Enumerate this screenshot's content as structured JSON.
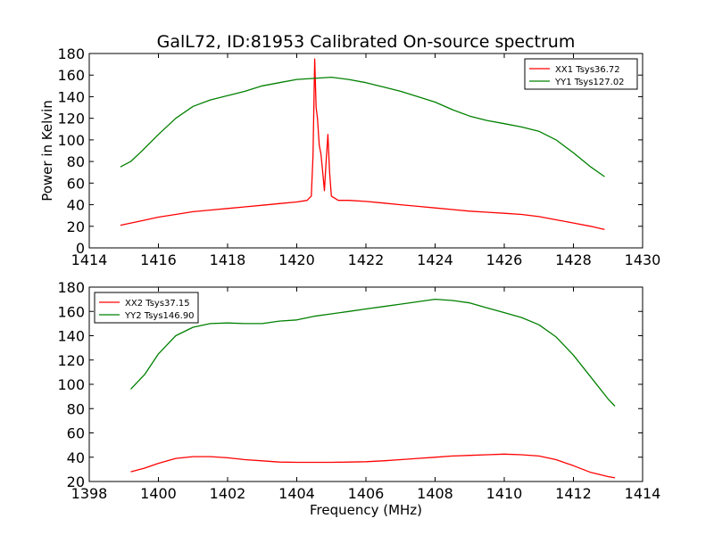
{
  "figure": {
    "title": "GalL72, ID:81953 Calibrated On-source spectrum",
    "ylabel": "Power in Kelvin",
    "xlabel": "Frequency (MHz)"
  },
  "chart_data": [
    {
      "type": "line",
      "title": "GalL72, ID:81953 Calibrated On-source spectrum",
      "xlabel": "",
      "ylabel": "Power in Kelvin",
      "xlim": [
        1414,
        1430
      ],
      "ylim": [
        0,
        180
      ],
      "xticks": [
        "1414",
        "1416",
        "1418",
        "1420",
        "1422",
        "1424",
        "1426",
        "1428",
        "1430"
      ],
      "yticks": [
        "0",
        "20",
        "40",
        "60",
        "80",
        "100",
        "120",
        "140",
        "160",
        "180"
      ],
      "legend": {
        "placement": "top-right"
      },
      "grid": false,
      "series": [
        {
          "name": "XX1 Tsys36.72",
          "color": "#ff0000",
          "points": [
            [
              1414.9,
              21
            ],
            [
              1415.5,
              25
            ],
            [
              1416.0,
              28.5
            ],
            [
              1416.5,
              31
            ],
            [
              1417.0,
              33.5
            ],
            [
              1417.5,
              35
            ],
            [
              1418.0,
              36.5
            ],
            [
              1418.5,
              38
            ],
            [
              1419.0,
              39.5
            ],
            [
              1419.5,
              41
            ],
            [
              1420.0,
              42.5
            ],
            [
              1420.3,
              44
            ],
            [
              1420.42,
              48
            ],
            [
              1420.47,
              85
            ],
            [
              1420.52,
              175
            ],
            [
              1420.56,
              130
            ],
            [
              1420.6,
              120
            ],
            [
              1420.65,
              95
            ],
            [
              1420.7,
              87
            ],
            [
              1420.75,
              70
            ],
            [
              1420.8,
              53
            ],
            [
              1420.85,
              80
            ],
            [
              1420.9,
              105
            ],
            [
              1420.95,
              70
            ],
            [
              1421.0,
              48
            ],
            [
              1421.2,
              44
            ],
            [
              1421.5,
              44
            ],
            [
              1422.0,
              43
            ],
            [
              1422.5,
              41.5
            ],
            [
              1423.0,
              40
            ],
            [
              1423.5,
              38.5
            ],
            [
              1424.0,
              37
            ],
            [
              1424.5,
              35.5
            ],
            [
              1425.0,
              34
            ],
            [
              1425.5,
              33
            ],
            [
              1426.0,
              32
            ],
            [
              1426.5,
              31
            ],
            [
              1427.0,
              29
            ],
            [
              1427.5,
              26
            ],
            [
              1428.0,
              23
            ],
            [
              1428.5,
              20
            ],
            [
              1428.9,
              17
            ]
          ]
        },
        {
          "name": "YY1 Tsys127.02",
          "color": "#008000",
          "points": [
            [
              1414.9,
              75
            ],
            [
              1415.2,
              80
            ],
            [
              1415.5,
              89
            ],
            [
              1416.0,
              105
            ],
            [
              1416.5,
              120
            ],
            [
              1417.0,
              131
            ],
            [
              1417.5,
              137
            ],
            [
              1418.0,
              141
            ],
            [
              1418.5,
              145
            ],
            [
              1419.0,
              150
            ],
            [
              1419.5,
              153
            ],
            [
              1420.0,
              156
            ],
            [
              1420.5,
              157
            ],
            [
              1421.0,
              158
            ],
            [
              1421.5,
              156
            ],
            [
              1422.0,
              153
            ],
            [
              1422.5,
              149
            ],
            [
              1423.0,
              145
            ],
            [
              1423.5,
              140
            ],
            [
              1424.0,
              135
            ],
            [
              1424.5,
              128
            ],
            [
              1425.0,
              122
            ],
            [
              1425.5,
              118
            ],
            [
              1426.0,
              115
            ],
            [
              1426.5,
              112
            ],
            [
              1427.0,
              108
            ],
            [
              1427.5,
              100
            ],
            [
              1428.0,
              88
            ],
            [
              1428.5,
              75
            ],
            [
              1428.9,
              66
            ]
          ]
        }
      ]
    },
    {
      "type": "line",
      "title": "",
      "xlabel": "Frequency (MHz)",
      "ylabel": "",
      "xlim": [
        1398,
        1414
      ],
      "ylim": [
        20,
        180
      ],
      "xticks": [
        "1398",
        "1400",
        "1402",
        "1404",
        "1406",
        "1408",
        "1410",
        "1412",
        "1414"
      ],
      "yticks": [
        "20",
        "40",
        "60",
        "80",
        "100",
        "120",
        "140",
        "160",
        "180"
      ],
      "legend": {
        "placement": "top-left"
      },
      "grid": false,
      "series": [
        {
          "name": "XX2 Tsys37.15",
          "color": "#ff0000",
          "points": [
            [
              1399.2,
              28
            ],
            [
              1399.6,
              31
            ],
            [
              1400.0,
              35
            ],
            [
              1400.5,
              39
            ],
            [
              1401.0,
              40.5
            ],
            [
              1401.5,
              40.5
            ],
            [
              1402.0,
              39.5
            ],
            [
              1402.5,
              38
            ],
            [
              1403.0,
              37
            ],
            [
              1403.5,
              36
            ],
            [
              1404.0,
              35.8
            ],
            [
              1404.5,
              35.8
            ],
            [
              1405.0,
              35.8
            ],
            [
              1405.5,
              36
            ],
            [
              1406.0,
              36.3
            ],
            [
              1406.5,
              37
            ],
            [
              1407.0,
              38
            ],
            [
              1407.5,
              39
            ],
            [
              1408.0,
              40
            ],
            [
              1408.5,
              41
            ],
            [
              1409.0,
              41.5
            ],
            [
              1409.5,
              42
            ],
            [
              1410.0,
              42.5
            ],
            [
              1410.5,
              42
            ],
            [
              1411.0,
              41
            ],
            [
              1411.5,
              38
            ],
            [
              1412.0,
              33
            ],
            [
              1412.5,
              27.5
            ],
            [
              1413.0,
              24
            ],
            [
              1413.2,
              23
            ]
          ]
        },
        {
          "name": "YY2 Tsys146.90",
          "color": "#008000",
          "points": [
            [
              1399.2,
              96
            ],
            [
              1399.6,
              108
            ],
            [
              1400.0,
              125
            ],
            [
              1400.5,
              140
            ],
            [
              1401.0,
              147
            ],
            [
              1401.5,
              150
            ],
            [
              1402.0,
              150.5
            ],
            [
              1402.5,
              150
            ],
            [
              1403.0,
              150
            ],
            [
              1403.5,
              152
            ],
            [
              1404.0,
              153
            ],
            [
              1404.5,
              156
            ],
            [
              1405.0,
              158
            ],
            [
              1405.5,
              160
            ],
            [
              1406.0,
              162
            ],
            [
              1406.5,
              164
            ],
            [
              1407.0,
              166
            ],
            [
              1407.5,
              168
            ],
            [
              1408.0,
              170
            ],
            [
              1408.5,
              169
            ],
            [
              1409.0,
              167
            ],
            [
              1409.5,
              163
            ],
            [
              1410.0,
              159
            ],
            [
              1410.5,
              155
            ],
            [
              1411.0,
              149
            ],
            [
              1411.5,
              139
            ],
            [
              1412.0,
              124
            ],
            [
              1412.5,
              106
            ],
            [
              1413.0,
              88
            ],
            [
              1413.2,
              82
            ]
          ]
        }
      ]
    }
  ]
}
